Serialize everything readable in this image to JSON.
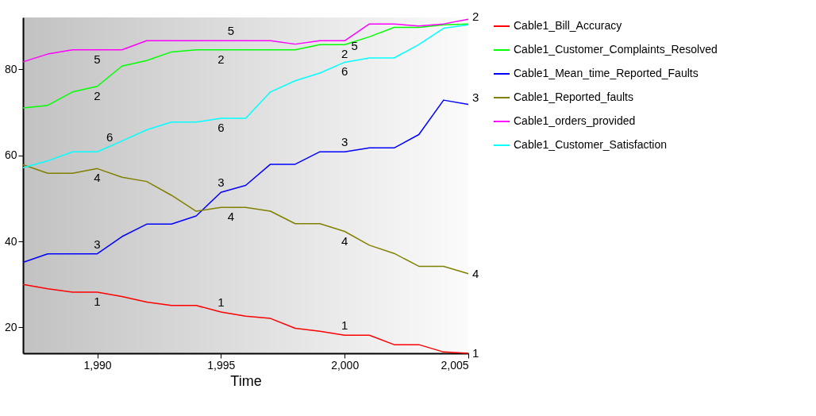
{
  "chart_data": {
    "type": "line",
    "xlabel": "Time",
    "x": [
      1987,
      1988,
      1989,
      1990,
      1991,
      1992,
      1993,
      1994,
      1995,
      1996,
      1997,
      1998,
      1999,
      2000,
      2001,
      2002,
      2003,
      2004,
      2005
    ],
    "series": [
      {
        "name": "Cable1_Bill_Accuracy",
        "color": "#ff0000",
        "values": [
          30,
          29,
          28.2,
          28.2,
          27.2,
          25.9,
          25.1,
          25.1,
          23.6,
          22.6,
          22.1,
          19.8,
          19.1,
          18.2,
          18.2,
          16,
          16,
          14.3,
          14
        ]
      },
      {
        "name": "Cable1_Customer_Complaints_Resolved",
        "color": "#00ff00",
        "values": [
          71,
          71.6,
          74.7,
          76,
          80.7,
          82,
          84,
          84.5,
          84.5,
          84.5,
          84.5,
          84.5,
          85.7,
          85.7,
          87.5,
          89.7,
          89.7,
          90.3,
          90.5
        ]
      },
      {
        "name": "Cable1_Mean_time_Reported_Faults",
        "color": "#0000ff",
        "values": [
          35.1,
          37.1,
          37.1,
          37.1,
          41.1,
          44,
          44,
          45.9,
          51.4,
          53,
          57.9,
          57.9,
          60.8,
          60.8,
          61.7,
          61.7,
          64.8,
          72.8,
          71.8
        ]
      },
      {
        "name": "Cable1_Reported_faults",
        "color": "#808000",
        "values": [
          57.8,
          55.8,
          55.8,
          56.9,
          54.9,
          53.9,
          50.7,
          47,
          47.9,
          47.9,
          47,
          44.1,
          44.1,
          42.3,
          39.1,
          37.2,
          34.2,
          34.2,
          32.5
        ]
      },
      {
        "name": "Cable1_orders_provided",
        "color": "#ff00ff",
        "values": [
          81.7,
          83.5,
          84.5,
          84.5,
          84.5,
          86.6,
          86.6,
          86.6,
          86.6,
          86.6,
          86.6,
          85.8,
          86.6,
          86.6,
          90.5,
          90.5,
          90,
          90.5,
          91.6
        ]
      },
      {
        "name": "Cable1_Customer_Satisfaction",
        "color": "#00ffff",
        "values": [
          57.1,
          58.7,
          60.8,
          60.8,
          63.3,
          65.9,
          67.7,
          67.7,
          68.6,
          68.6,
          74.7,
          77.3,
          79.1,
          81.6,
          82.6,
          82.6,
          85.7,
          89.5,
          90.3
        ]
      }
    ],
    "xlim": [
      1987,
      2005
    ],
    "ylim": [
      14,
      92
    ],
    "xticks": [
      {
        "value": 1990,
        "label": "1,990"
      },
      {
        "value": 1995,
        "label": "1,995"
      },
      {
        "value": 2000,
        "label": "2,000"
      },
      {
        "value": 2005,
        "label": "2,005"
      }
    ],
    "yticks": [
      20,
      40,
      60,
      80
    ],
    "grid": false,
    "legend": "right",
    "marker": "none",
    "line_style": "solid",
    "annotations": [
      {
        "text": "5",
        "x": 1990,
        "y": 84.5
      },
      {
        "text": "2",
        "x": 1990,
        "y": 76
      },
      {
        "text": "6",
        "x": 1990.5,
        "y": 62
      },
      {
        "text": "4",
        "x": 1990,
        "y": 56.9
      },
      {
        "text": "3",
        "x": 1990,
        "y": 37.1
      },
      {
        "text": "1",
        "x": 1990,
        "y": 28.2
      },
      {
        "text": "5",
        "x": 1995.4,
        "y": 86.6
      },
      {
        "text": "2",
        "x": 1995,
        "y": 84.5
      },
      {
        "text": "6",
        "x": 1995,
        "y": 68.6
      },
      {
        "text": "3",
        "x": 1995,
        "y": 51.4
      },
      {
        "text": "4",
        "x": 1995.4,
        "y": 47.9
      },
      {
        "text": "1",
        "x": 1995,
        "y": 23.6
      },
      {
        "text": "5",
        "x": 2000.4,
        "y": 87.5
      },
      {
        "text": "2",
        "x": 2000,
        "y": 85.7
      },
      {
        "text": "6",
        "x": 2000,
        "y": 81.6
      },
      {
        "text": "3",
        "x": 2000,
        "y": 60.8
      },
      {
        "text": "4",
        "x": 2000,
        "y": 42.3
      },
      {
        "text": "1",
        "x": 2000,
        "y": 18.2
      },
      {
        "text": "2",
        "x": 2005,
        "y": 90.5
      },
      {
        "text": "3",
        "x": 2005,
        "y": 71.8
      },
      {
        "text": "4",
        "x": 2005,
        "y": 32.5
      },
      {
        "text": "1",
        "x": 2005,
        "y": 14
      }
    ]
  }
}
